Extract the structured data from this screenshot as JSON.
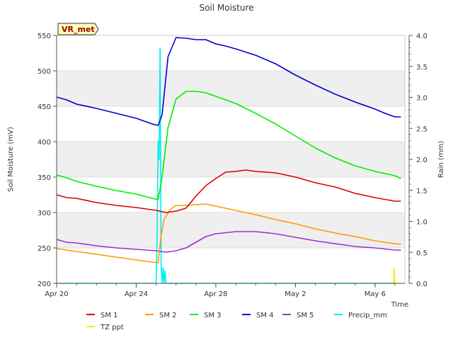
{
  "chart_data": {
    "type": "line",
    "title": "Soil Moisture",
    "xlabel": "Time",
    "ylabel": "Soil Moisture (mV)",
    "ylabel_right": "Rain (mm)",
    "station_label": "VR_met",
    "xlim_days": [
      0,
      17.5
    ],
    "ylim": [
      200,
      550
    ],
    "ylim_right": [
      0,
      4.0
    ],
    "x_ticks": [
      {
        "day": 0,
        "label": "Apr 20"
      },
      {
        "day": 4,
        "label": "Apr 24"
      },
      {
        "day": 8,
        "label": "Apr 28"
      },
      {
        "day": 12,
        "label": "May 2"
      },
      {
        "day": 16,
        "label": "May 6"
      }
    ],
    "y_ticks": [
      200,
      250,
      300,
      350,
      400,
      450,
      500,
      550
    ],
    "y_ticks_right": [
      {
        "value": 0,
        "label": "0.0"
      },
      {
        "value": 0.5,
        "label": "0.5"
      },
      {
        "value": 1.0,
        "label": "1.0"
      },
      {
        "value": 1.5,
        "label": "1.5"
      },
      {
        "value": 2.0,
        "label": "2.0"
      },
      {
        "value": 2.5,
        "label": "2.5"
      },
      {
        "value": 3.0,
        "label": "3.0"
      },
      {
        "value": 3.5,
        "label": "3.5"
      },
      {
        "value": 4.0,
        "label": "4.0"
      }
    ],
    "series": [
      {
        "name": "SM 1",
        "color": "#dd0000",
        "axis": "left",
        "x": [
          0,
          0.5,
          1,
          2,
          3,
          4,
          5,
          5.5,
          6,
          6.5,
          7,
          7.5,
          8,
          8.5,
          9,
          9.5,
          10,
          11,
          12,
          13,
          14,
          15,
          16,
          17,
          17.3
        ],
        "values": [
          325,
          321,
          320,
          314,
          310,
          307,
          303,
          300,
          302,
          306,
          323,
          338,
          348,
          357,
          358,
          360,
          358,
          356,
          350,
          342,
          336,
          327,
          321,
          316,
          316
        ]
      },
      {
        "name": "SM 2",
        "color": "#ff9900",
        "axis": "left",
        "x": [
          0,
          0.5,
          1,
          2,
          3,
          4,
          4.8,
          5.1,
          5.25,
          5.4,
          5.7,
          6,
          6.5,
          7,
          7.5,
          8,
          9,
          10,
          11,
          12,
          13,
          14,
          15,
          16,
          17,
          17.3
        ],
        "values": [
          249,
          247,
          245,
          241,
          237,
          233,
          230,
          229,
          268,
          290,
          304,
          310,
          310,
          311,
          312,
          309,
          303,
          297,
          290,
          284,
          277,
          271,
          266,
          260,
          256,
          255
        ]
      },
      {
        "name": "SM 3",
        "color": "#00ee00",
        "axis": "left",
        "x": [
          0,
          0.5,
          1,
          2,
          3,
          4,
          4.8,
          5.1,
          5.3,
          5.6,
          6,
          6.5,
          7,
          7.5,
          8,
          9,
          10,
          11,
          12,
          13,
          14,
          15,
          16,
          17,
          17.3
        ],
        "values": [
          353,
          349,
          344,
          337,
          331,
          326,
          320,
          318,
          350,
          420,
          460,
          471,
          471,
          469,
          464,
          454,
          440,
          425,
          408,
          391,
          377,
          366,
          358,
          352,
          348
        ]
      },
      {
        "name": "SM 4",
        "color": "#0000cc",
        "axis": "left",
        "x": [
          0,
          0.5,
          1,
          2,
          3,
          4,
          4.8,
          5.1,
          5.3,
          5.6,
          6,
          6.5,
          7,
          7.5,
          8,
          8.5,
          9,
          10,
          11,
          12,
          13,
          14,
          15,
          16,
          16.5,
          17,
          17.3
        ],
        "values": [
          463,
          459,
          453,
          447,
          440,
          433,
          425,
          423,
          438,
          520,
          547,
          546,
          544,
          544,
          538,
          535,
          531,
          522,
          510,
          494,
          480,
          467,
          456,
          446,
          440,
          435,
          435
        ]
      },
      {
        "name": "SM 5",
        "color": "#9933cc",
        "axis": "left",
        "x": [
          0,
          0.5,
          1,
          2,
          3,
          4,
          5,
          5.5,
          6,
          6.5,
          7,
          7.5,
          8,
          9,
          10,
          11,
          12,
          13,
          14,
          15,
          16,
          17,
          17.3
        ],
        "values": [
          262,
          258,
          257,
          253,
          250,
          248,
          246,
          244,
          246,
          250,
          258,
          266,
          270,
          273,
          273,
          270,
          265,
          260,
          256,
          252,
          250,
          247,
          247
        ]
      },
      {
        "name": "Precip_mm",
        "color": "#00eeee",
        "axis": "right",
        "x": [
          0,
          5.0,
          5.05,
          5.1,
          5.15,
          5.2,
          5.25,
          5.3,
          5.35,
          5.4,
          5.45,
          5.5,
          5.55,
          5.6,
          17.0
        ],
        "values": [
          0,
          0,
          0.8,
          2.3,
          2.0,
          3.8,
          0.3,
          0,
          0.25,
          0,
          0.2,
          0,
          0,
          0,
          0
        ]
      },
      {
        "name": "TZ ppt",
        "color": "#eeee00",
        "axis": "right",
        "x": [
          16.95,
          16.95,
          17.0,
          17.3
        ],
        "values": [
          0,
          0.25,
          0,
          0
        ]
      }
    ]
  }
}
